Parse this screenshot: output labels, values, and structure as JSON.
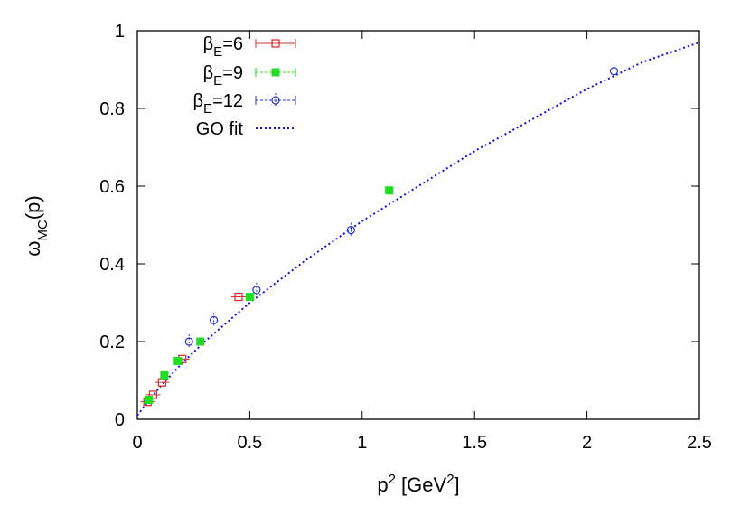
{
  "chart_data": {
    "type": "scatter",
    "xlabel": {
      "base": "p",
      "sup1": "2",
      "text": " [GeV",
      "sup2": "2",
      "close": "]"
    },
    "ylabel": {
      "base": "ω",
      "sub": "MC",
      "tail": "(p)"
    },
    "xlim": [
      0,
      2.5
    ],
    "ylim": [
      0,
      1
    ],
    "xticks": [
      "0",
      "0.5",
      "1",
      "1.5",
      "2",
      "2.5"
    ],
    "yticks": [
      "0",
      "0.2",
      "0.4",
      "0.6",
      "0.8",
      "1"
    ],
    "grid": false,
    "legend_position": "top-left",
    "series": [
      {
        "name": "β_E=6",
        "label_base": "β",
        "label_sub": "E",
        "label_tail": "=6",
        "marker": "open-square",
        "color": "#e03030",
        "points": [
          [
            0.045,
            0.045
          ],
          [
            0.07,
            0.063
          ],
          [
            0.11,
            0.095
          ],
          [
            0.2,
            0.155
          ],
          [
            0.45,
            0.315
          ]
        ]
      },
      {
        "name": "β_E=9",
        "label_base": "β",
        "label_sub": "E",
        "label_tail": "=9",
        "marker": "filled-square",
        "color": "#22dd22",
        "points": [
          [
            0.05,
            0.05
          ],
          [
            0.12,
            0.113
          ],
          [
            0.18,
            0.15
          ],
          [
            0.28,
            0.2
          ],
          [
            0.5,
            0.315
          ],
          [
            1.12,
            0.589
          ]
        ]
      },
      {
        "name": "β_E=12",
        "label_base": "β",
        "label_sub": "E",
        "label_tail": "=12",
        "marker": "open-circle",
        "color": "#2233cc",
        "points": [
          [
            0.23,
            0.2
          ],
          [
            0.34,
            0.255
          ],
          [
            0.53,
            0.333
          ],
          [
            0.95,
            0.487
          ],
          [
            2.12,
            0.896
          ]
        ]
      },
      {
        "name": "GO fit",
        "label_base": "GO fit",
        "label_sub": "",
        "label_tail": "",
        "marker": "dotted-line",
        "color": "#1111dd",
        "fit_curve": {
          "x": [
            0.0,
            0.05,
            0.1,
            0.2,
            0.3,
            0.5,
            0.75,
            1.0,
            1.25,
            1.5,
            1.75,
            2.0,
            2.25,
            2.5
          ],
          "y": [
            0.01,
            0.048,
            0.083,
            0.145,
            0.2,
            0.3,
            0.41,
            0.51,
            0.6,
            0.69,
            0.77,
            0.85,
            0.92,
            0.97
          ]
        }
      }
    ]
  }
}
